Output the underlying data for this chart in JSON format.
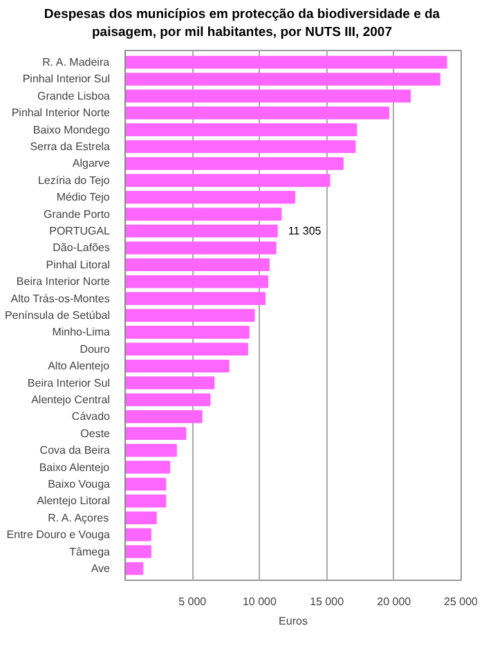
{
  "chart_data": {
    "type": "bar",
    "orientation": "horizontal",
    "title": "Despesas dos municípios em protecção da biodiversidade e da paisagem, por mil habitantes, por NUTS III, 2007",
    "xlabel": "Euros",
    "categories": [
      "R. A. Madeira",
      "Pinhal Interior Sul",
      "Grande Lisboa",
      "Pinhal Interior Norte",
      "Baixo Mondego",
      "Serra da Estrela",
      "Algarve",
      "Lezíria do Tejo",
      "Médio Tejo",
      "Grande Porto",
      "PORTUGAL",
      "Dão-Lafões",
      "Pinhal Litoral",
      "Beira Interior Norte",
      "Alto Trás-os-Montes",
      "Península de Setúbal",
      "Minho-Lima",
      "Douro",
      "Alto Alentejo",
      "Beira Interior Sul",
      "Alentejo Central",
      "Cávado",
      "Oeste",
      "Cova da Beira",
      "Baixo Alentejo",
      "Baixo Vouga",
      "Alentejo Litoral",
      "R. A. Açores",
      "Entre Douro e Vouga",
      "Tâmega",
      "Ave"
    ],
    "values": [
      23900,
      23400,
      21200,
      19600,
      17200,
      17100,
      16200,
      15200,
      12600,
      11600,
      11305,
      11200,
      10700,
      10600,
      10400,
      9600,
      9200,
      9100,
      7700,
      6600,
      6300,
      5700,
      4500,
      3800,
      3300,
      3000,
      3000,
      2300,
      1900,
      1900,
      1300
    ],
    "value_labels": [
      null,
      null,
      null,
      null,
      null,
      null,
      null,
      null,
      null,
      null,
      "11 305",
      null,
      null,
      null,
      null,
      null,
      null,
      null,
      null,
      null,
      null,
      null,
      null,
      null,
      null,
      null,
      null,
      null,
      null,
      null,
      null
    ],
    "color": "#ff66ff",
    "xlim": [
      0,
      25000
    ],
    "xticks": [
      {
        "value": 0,
        "label": null
      },
      {
        "value": 5000,
        "label": "5 000"
      },
      {
        "value": 10000,
        "label": "10 000"
      },
      {
        "value": 15000,
        "label": "15 000"
      },
      {
        "value": 20000,
        "label": "20 000"
      },
      {
        "value": 25000,
        "label": "25 000"
      }
    ],
    "grid": "x"
  }
}
